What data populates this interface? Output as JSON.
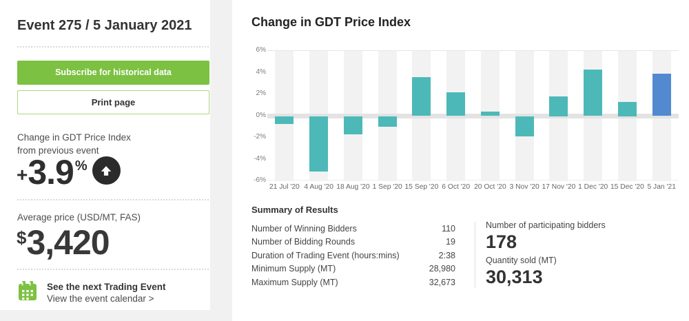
{
  "sidebar": {
    "title": "Event 275 / 5 January 2021",
    "subscribe_button": "Subscribe for historical data",
    "print_button": "Print page",
    "change_label_line1": "Change in GDT Price Index",
    "change_label_line2": "from previous event",
    "change_sign": "+",
    "change_value": "3.9",
    "change_unit": "%",
    "avg_price_label": "Average price (USD/MT, FAS)",
    "avg_price_currency": "$",
    "avg_price_value": "3,420",
    "next_event_title": "See the next Trading Event",
    "next_event_link": "View the event calendar >"
  },
  "main": {
    "chart_title": "Change in GDT Price Index",
    "summary": {
      "heading": "Summary of Results",
      "rows": [
        {
          "label": "Number of Winning Bidders",
          "value": "110"
        },
        {
          "label": "Number of Bidding Rounds",
          "value": "19"
        },
        {
          "label": "Duration of Trading Event (hours:mins)",
          "value": "2:38"
        },
        {
          "label": "Minimum Supply (MT)",
          "value": "28,980"
        },
        {
          "label": "Maximum Supply (MT)",
          "value": "32,673"
        }
      ],
      "stats": [
        {
          "label": "Number of participating bidders",
          "value": "178"
        },
        {
          "label": "Quantity sold (MT)",
          "value": "30,313"
        }
      ]
    }
  },
  "chart_data": {
    "type": "bar",
    "title": "Change in GDT Price Index",
    "categories": [
      "21 Jul '20",
      "4 Aug '20",
      "18 Aug '20",
      "1 Sep '20",
      "15 Sep '20",
      "6 Oct '20",
      "20 Oct '20",
      "3 Nov '20",
      "17 Nov '20",
      "1 Dec '20",
      "15 Dec '20",
      "5 Jan '21"
    ],
    "values": [
      -0.7,
      -5.1,
      -1.7,
      -1.0,
      3.6,
      2.2,
      0.4,
      -1.9,
      1.8,
      4.3,
      1.3,
      3.9
    ],
    "ylabel": "",
    "xlabel": "",
    "ylim": [
      -6,
      6
    ],
    "ytick_labels": [
      "6%",
      "4%",
      "2%",
      "0%",
      "-2%",
      "-4%",
      "-6%"
    ],
    "grid": "off",
    "legend": "none",
    "bar_color": "#4db8b8",
    "highlight_color": "#5289cf",
    "highlight_index": 11,
    "stripe_color": "#f2f2f2",
    "zero_band_color": "#e3e3e3"
  },
  "colors": {
    "accent_green": "#7cc142",
    "page_bg": "#f1f1f1",
    "dark_circle": "#2b2b2b"
  }
}
